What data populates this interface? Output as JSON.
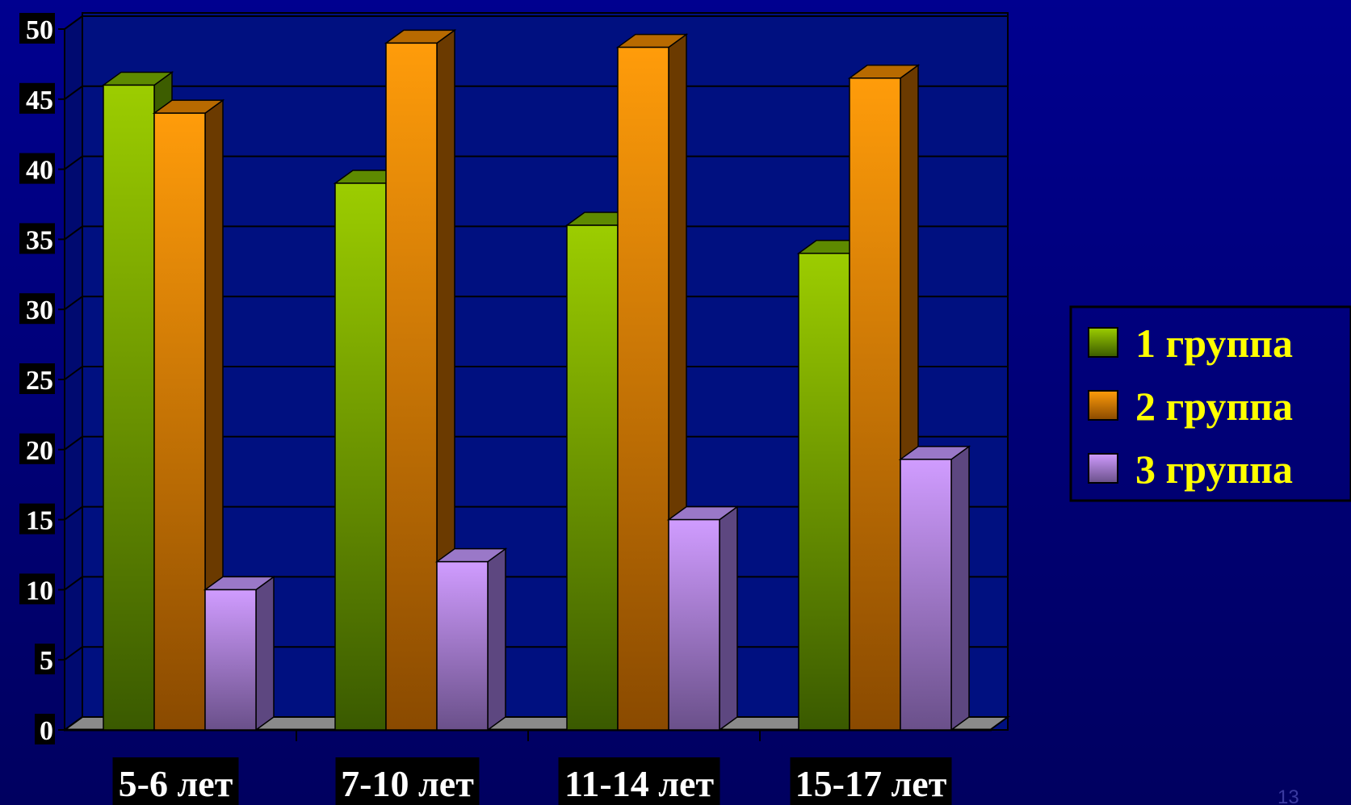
{
  "chart_data": {
    "type": "bar",
    "categories": [
      "5-6 лет",
      "7-10 лет",
      "11-14 лет",
      "15-17 лет"
    ],
    "series": [
      {
        "name": "1 группа",
        "values": [
          46,
          39,
          36,
          34
        ]
      },
      {
        "name": "2 группа",
        "values": [
          44,
          49,
          48.7,
          46.5
        ]
      },
      {
        "name": "3 группа",
        "values": [
          10,
          12,
          15,
          19.3
        ]
      }
    ],
    "ylim": [
      0,
      50
    ],
    "yticks": [
      0,
      5,
      10,
      15,
      20,
      25,
      30,
      35,
      40,
      45,
      50
    ],
    "grid": true,
    "legend_position": "right",
    "style": "3d-column",
    "colors": {
      "background": "#00008f",
      "plot_background": "#001080",
      "series": [
        "#8fc400",
        "#ff9a10",
        "#c896f0"
      ],
      "legend_text": "#ffff00"
    }
  },
  "page_number": "13"
}
